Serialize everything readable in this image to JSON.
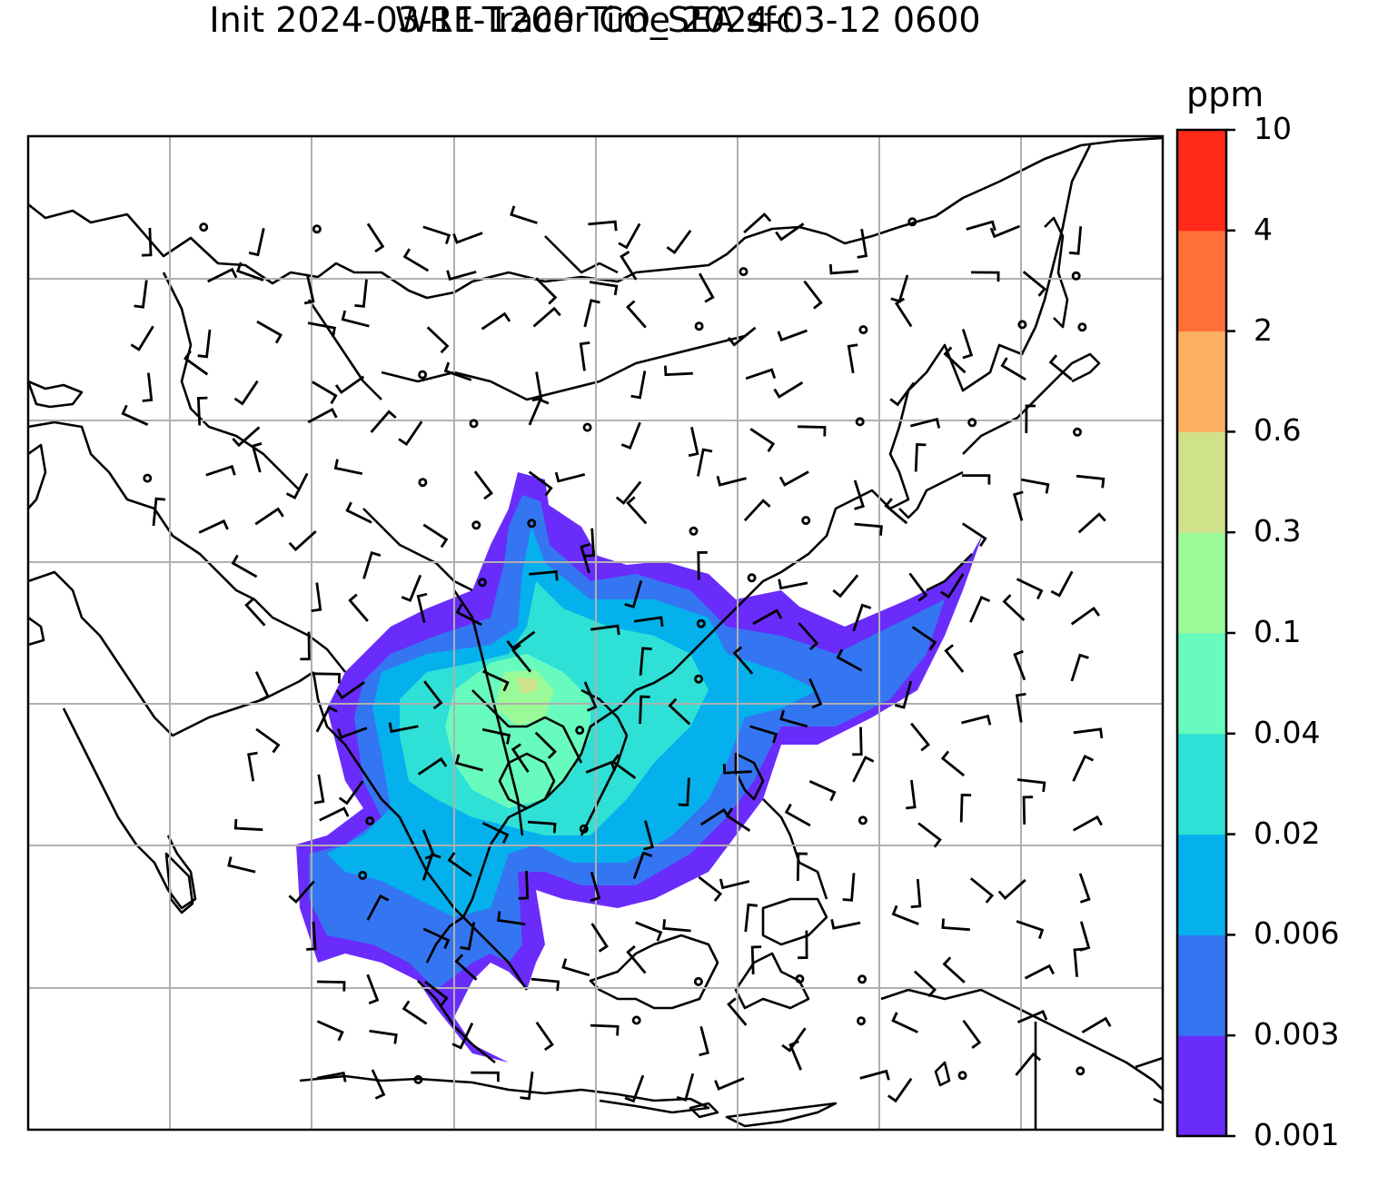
{
  "title_line1": "WRF-Tracer CO_SEA sfc",
  "title_line2": "Init 2024-03-11 1200 Time 2024-03-12 0600",
  "colorbar": {
    "unit": "ppm",
    "levels": [
      "0.001",
      "0.003",
      "0.006",
      "0.02",
      "0.04",
      "0.1",
      "0.3",
      "0.6",
      "2",
      "4",
      "10"
    ],
    "colors": [
      "#6a2cfb",
      "#3476f2",
      "#04b1ec",
      "#2fe0d6",
      "#68fbbe",
      "#9bfa98",
      "#cfe189",
      "#feb062",
      "#ff7139",
      "#ff2a19"
    ]
  },
  "map": {
    "region": "Southeast Asia",
    "field": "CO_SEA tracer concentration at surface",
    "overlay": "wind barbs",
    "gridlines": true
  }
}
